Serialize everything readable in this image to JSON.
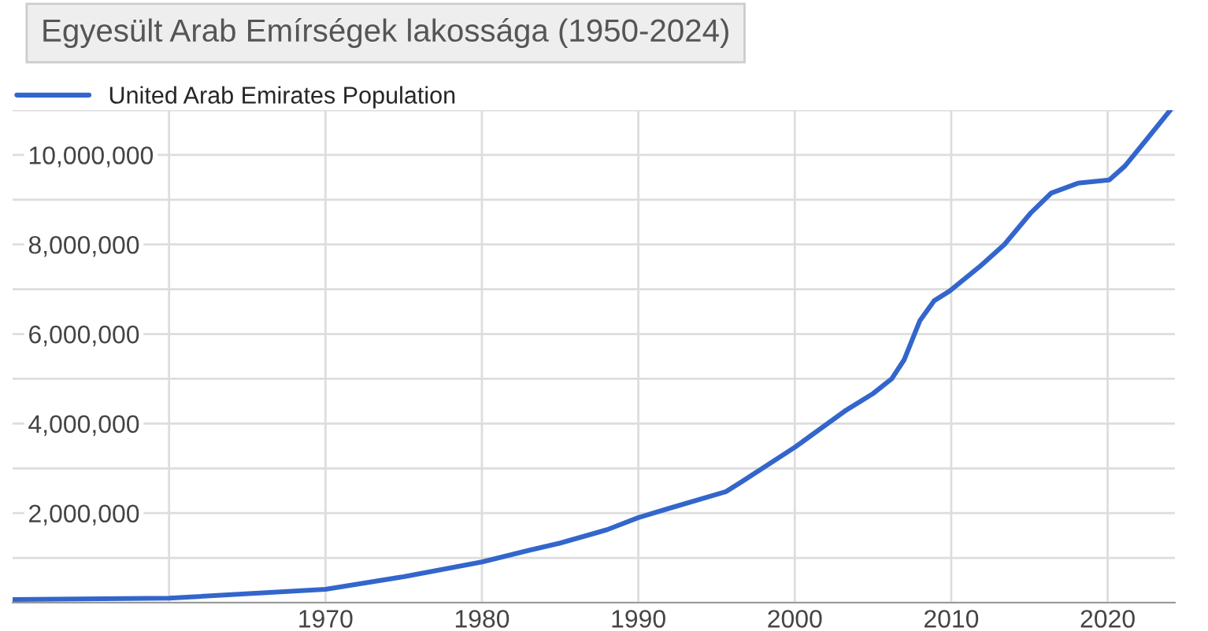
{
  "chart_data": {
    "type": "line",
    "title": "Egyesült Arab Emírségek lakossága (1950-2024)",
    "x": [
      1950,
      1960,
      1970,
      1975,
      1980,
      1983,
      1985,
      1988,
      1990,
      1991.9,
      1995.6,
      1996.6,
      2000,
      2003.2,
      2005,
      2006.2,
      2007,
      2008,
      2008.9,
      2009.9,
      2011.8,
      2013.4,
      2015.1,
      2016.4,
      2018.1,
      2020.1,
      2021.1,
      2022.5,
      2024
    ],
    "series": [
      {
        "name": "United Arab Emirates Population",
        "color": "#3366cc",
        "values": [
          70000,
          100000,
          300000,
          580000,
          910000,
          1170000,
          1330000,
          1630000,
          1900000,
          2100000,
          2480000,
          2700000,
          3470000,
          4280000,
          4670000,
          5000000,
          5430000,
          6300000,
          6740000,
          6960000,
          7500000,
          8000000,
          8710000,
          9150000,
          9370000,
          9440000,
          9750000,
          10350000,
          11000000
        ]
      }
    ],
    "xlim": [
      1950,
      2024.3
    ],
    "ylim": [
      0,
      11000000
    ],
    "xticks": [
      {
        "value": 1960,
        "label": null
      },
      1970,
      1980,
      1990,
      2000,
      2010,
      2020
    ],
    "yticks": [
      {
        "value": 0,
        "label": null
      },
      {
        "value": 1000000,
        "label": null
      },
      {
        "value": 2000000,
        "label": "2,000,000"
      },
      {
        "value": 3000000,
        "label": null
      },
      {
        "value": 4000000,
        "label": "4,000,000"
      },
      {
        "value": 5000000,
        "label": null
      },
      {
        "value": 6000000,
        "label": "6,000,000"
      },
      {
        "value": 7000000,
        "label": null
      },
      {
        "value": 8000000,
        "label": "8,000,000"
      },
      {
        "value": 9000000,
        "label": null
      },
      {
        "value": 10000000,
        "label": "10,000,000"
      },
      {
        "value": 11000000,
        "label": null
      }
    ],
    "grid": true,
    "legend": "top left",
    "marker": "none",
    "line_style": "solid"
  }
}
